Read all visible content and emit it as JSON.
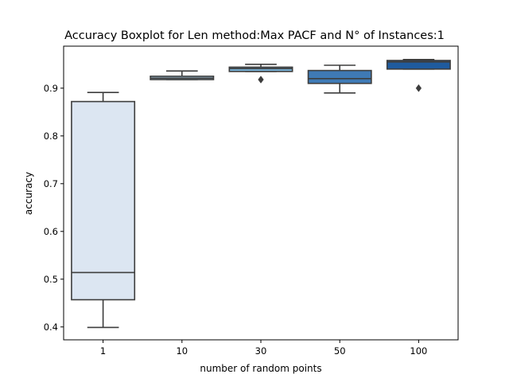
{
  "chart_data": {
    "type": "boxplot",
    "title": "Accuracy Boxplot for Len method:Max PACF and N° of Instances:1",
    "xlabel": "number of random points",
    "ylabel": "accuracy",
    "ylim": [
      0.373,
      0.988
    ],
    "yticks": [
      "0.4",
      "0.5",
      "0.6",
      "0.7",
      "0.8",
      "0.9"
    ],
    "categories": [
      "1",
      "10",
      "30",
      "50",
      "100"
    ],
    "boxes": [
      {
        "category": "1",
        "whislo": 0.399,
        "q1": 0.457,
        "med": 0.514,
        "q3": 0.872,
        "whishi": 0.891,
        "fliers": [],
        "color": "#dce6f2"
      },
      {
        "category": "10",
        "whislo": 0.918,
        "q1": 0.918,
        "med": 0.921,
        "q3": 0.925,
        "whishi": 0.936,
        "fliers": [],
        "color": "#a9cbe3"
      },
      {
        "category": "30",
        "whislo": 0.935,
        "q1": 0.935,
        "med": 0.941,
        "q3": 0.944,
        "whishi": 0.95,
        "fliers": [
          0.918
        ],
        "color": "#78b1d6"
      },
      {
        "category": "50",
        "whislo": 0.89,
        "q1": 0.91,
        "med": 0.92,
        "q3": 0.937,
        "whishi": 0.948,
        "fliers": [],
        "color": "#3f7ab5"
      },
      {
        "category": "100",
        "whislo": 0.94,
        "q1": 0.94,
        "med": 0.955,
        "q3": 0.958,
        "whishi": 0.96,
        "fliers": [
          0.9
        ],
        "color": "#1f5b9e"
      }
    ],
    "grid": false,
    "legend": "none"
  }
}
